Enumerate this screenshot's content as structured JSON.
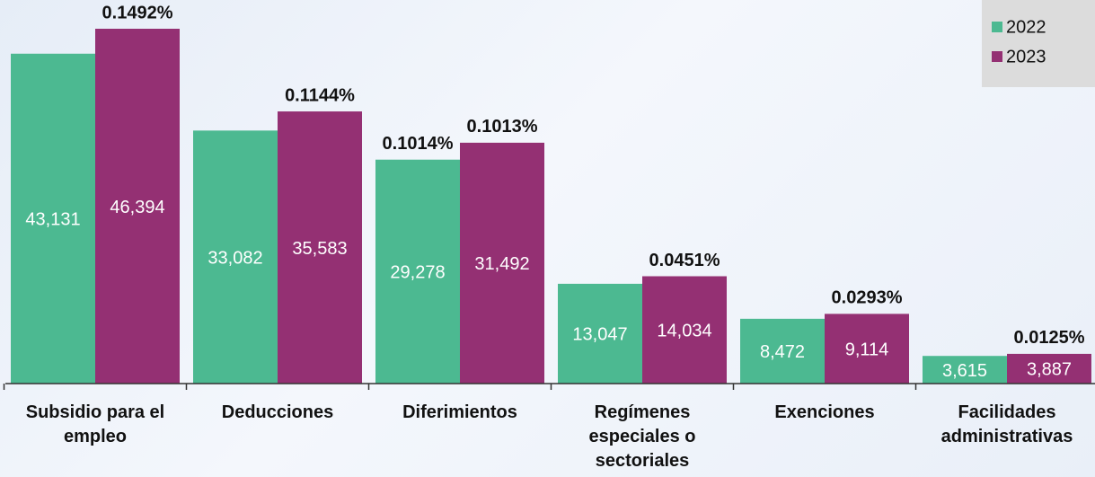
{
  "chart_data": {
    "type": "bar",
    "categories": [
      "Subsidio para el empleo",
      "Deducciones",
      "Diferimientos",
      "Regímenes especiales o sectoriales",
      "Exenciones",
      "Facilidades administrativas"
    ],
    "series": [
      {
        "name": "2022",
        "color": "#4cb991",
        "values": [
          43131,
          33082,
          29278,
          13047,
          8472,
          3615
        ],
        "value_labels": [
          "43,131",
          "33,082",
          "29,278",
          "13,047",
          "8,472",
          "3,615"
        ],
        "annotations": [
          null,
          null,
          "0.1014%",
          null,
          null,
          null
        ]
      },
      {
        "name": "2023",
        "color": "#943073",
        "values": [
          46394,
          35583,
          31492,
          14034,
          9114,
          3887
        ],
        "value_labels": [
          "46,394",
          "35,583",
          "31,492",
          "14,034",
          "9,114",
          "3,887"
        ],
        "annotations": [
          "0.1492%",
          "0.1144%",
          "0.1013%",
          "0.0451%",
          "0.0293%",
          "0.0125%"
        ]
      }
    ],
    "legend": "top-right"
  }
}
